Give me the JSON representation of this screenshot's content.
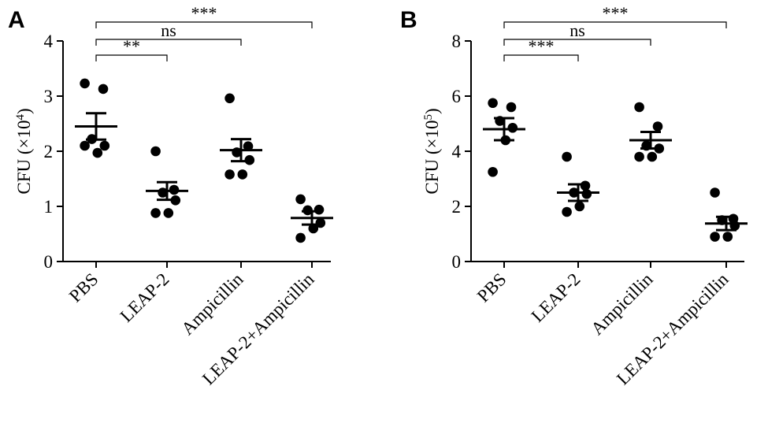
{
  "chart_data": [
    {
      "panel": "A",
      "type": "scatter",
      "ylabel_text": "CFU (×10",
      "ylabel_exp": "4",
      "ylabel_close": ")",
      "categories": [
        "PBS",
        "LEAP-2",
        "Ampicillin",
        "LEAP-2+Ampicillin"
      ],
      "ylim": [
        0,
        4
      ],
      "yticks": [
        "0",
        "1",
        "2",
        "3",
        "4"
      ],
      "points": [
        [
          3.23,
          3.13,
          2.22,
          2.1,
          1.97,
          2.1
        ],
        [
          2.0,
          1.3,
          1.25,
          1.11,
          0.88,
          0.88
        ],
        [
          2.96,
          2.09,
          1.98,
          1.84,
          1.58,
          1.58
        ],
        [
          1.13,
          0.94,
          0.93,
          0.7,
          0.6,
          0.43
        ]
      ],
      "mean": [
        2.45,
        1.28,
        2.02,
        0.79
      ],
      "sem_upper": [
        2.69,
        1.44,
        2.22,
        0.91
      ],
      "sem_lower": [
        2.21,
        1.12,
        1.82,
        0.67
      ],
      "comparisons": [
        {
          "from": 0,
          "to": 1,
          "label": "**"
        },
        {
          "from": 0,
          "to": 2,
          "label": "ns"
        },
        {
          "from": 0,
          "to": 3,
          "label": "***"
        }
      ]
    },
    {
      "panel": "B",
      "type": "scatter",
      "ylabel_text": "CFU (×10",
      "ylabel_exp": "5",
      "ylabel_close": ")",
      "categories": [
        "PBS",
        "LEAP-2",
        "Ampicillin",
        "LEAP-2+Ampicillin"
      ],
      "ylim": [
        0,
        8
      ],
      "yticks": [
        "0",
        "2",
        "4",
        "6",
        "8"
      ],
      "points": [
        [
          5.75,
          5.6,
          5.1,
          4.85,
          4.4,
          3.25
        ],
        [
          3.8,
          2.75,
          2.5,
          2.45,
          2.0,
          1.8
        ],
        [
          5.6,
          4.9,
          4.2,
          4.1,
          3.8,
          3.8
        ],
        [
          2.5,
          1.55,
          1.5,
          1.3,
          0.9,
          0.9
        ]
      ],
      "mean": [
        4.8,
        2.5,
        4.4,
        1.38
      ],
      "sem_upper": [
        5.2,
        2.8,
        4.7,
        1.62
      ],
      "sem_lower": [
        4.4,
        2.2,
        4.1,
        1.14
      ],
      "comparisons": [
        {
          "from": 0,
          "to": 1,
          "label": "***"
        },
        {
          "from": 0,
          "to": 2,
          "label": "ns"
        },
        {
          "from": 0,
          "to": 3,
          "label": "***"
        }
      ]
    }
  ]
}
